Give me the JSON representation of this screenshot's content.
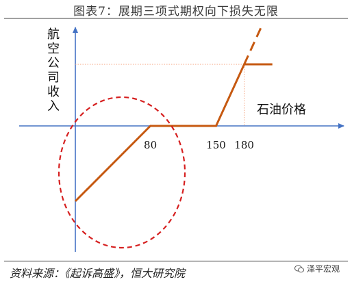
{
  "title": "图表7：展期三项式期权向下损失无限",
  "source": "资料来源：《起诉高盛》，恒大研究院",
  "watermark": "泽平宏观",
  "chart_data": {
    "type": "line",
    "ylabel": "航空公司收入",
    "xlabel": "石油价格",
    "x_ticks": [
      80,
      150,
      180
    ],
    "series": [
      {
        "points": [
          {
            "x": 0,
            "y": -110
          },
          {
            "x": 80,
            "y": 0
          },
          {
            "x": 150,
            "y": 0
          },
          {
            "x": 180,
            "y": 90
          },
          {
            "x": 210,
            "y": 90
          }
        ]
      }
    ],
    "extension": {
      "from": {
        "x": 180,
        "y": 90
      },
      "to": {
        "x": 200,
        "y": 150
      },
      "style": "dashed"
    },
    "reference_lines": {
      "level_y": 90,
      "at_x": 180,
      "style": "dotted"
    },
    "highlight": {
      "shape": "ellipse",
      "style": "dashed",
      "color": "#d62020"
    },
    "colors": {
      "line": "#c65911",
      "axes": "#4472c4",
      "guide": "#f4a582",
      "highlight": "#d62020"
    }
  }
}
